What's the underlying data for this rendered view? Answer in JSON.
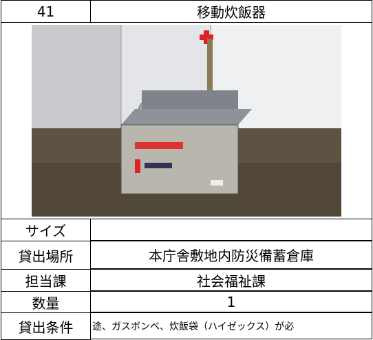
{
  "header": {
    "number": "41",
    "title": "移動炊飯器"
  },
  "table": {
    "rows": [
      [
        "サイズ",
        null
      ],
      [
        "貸出場所",
        "本庁舎敷地内防災備蓄倉庫"
      ],
      [
        "担当課",
        "社会福祉課"
      ],
      [
        "数量",
        "1"
      ],
      [
        "貸出条件",
        "途、ガスボンベ、炊飯袋（ハイゼックス）が必"
      ]
    ]
  }
}
